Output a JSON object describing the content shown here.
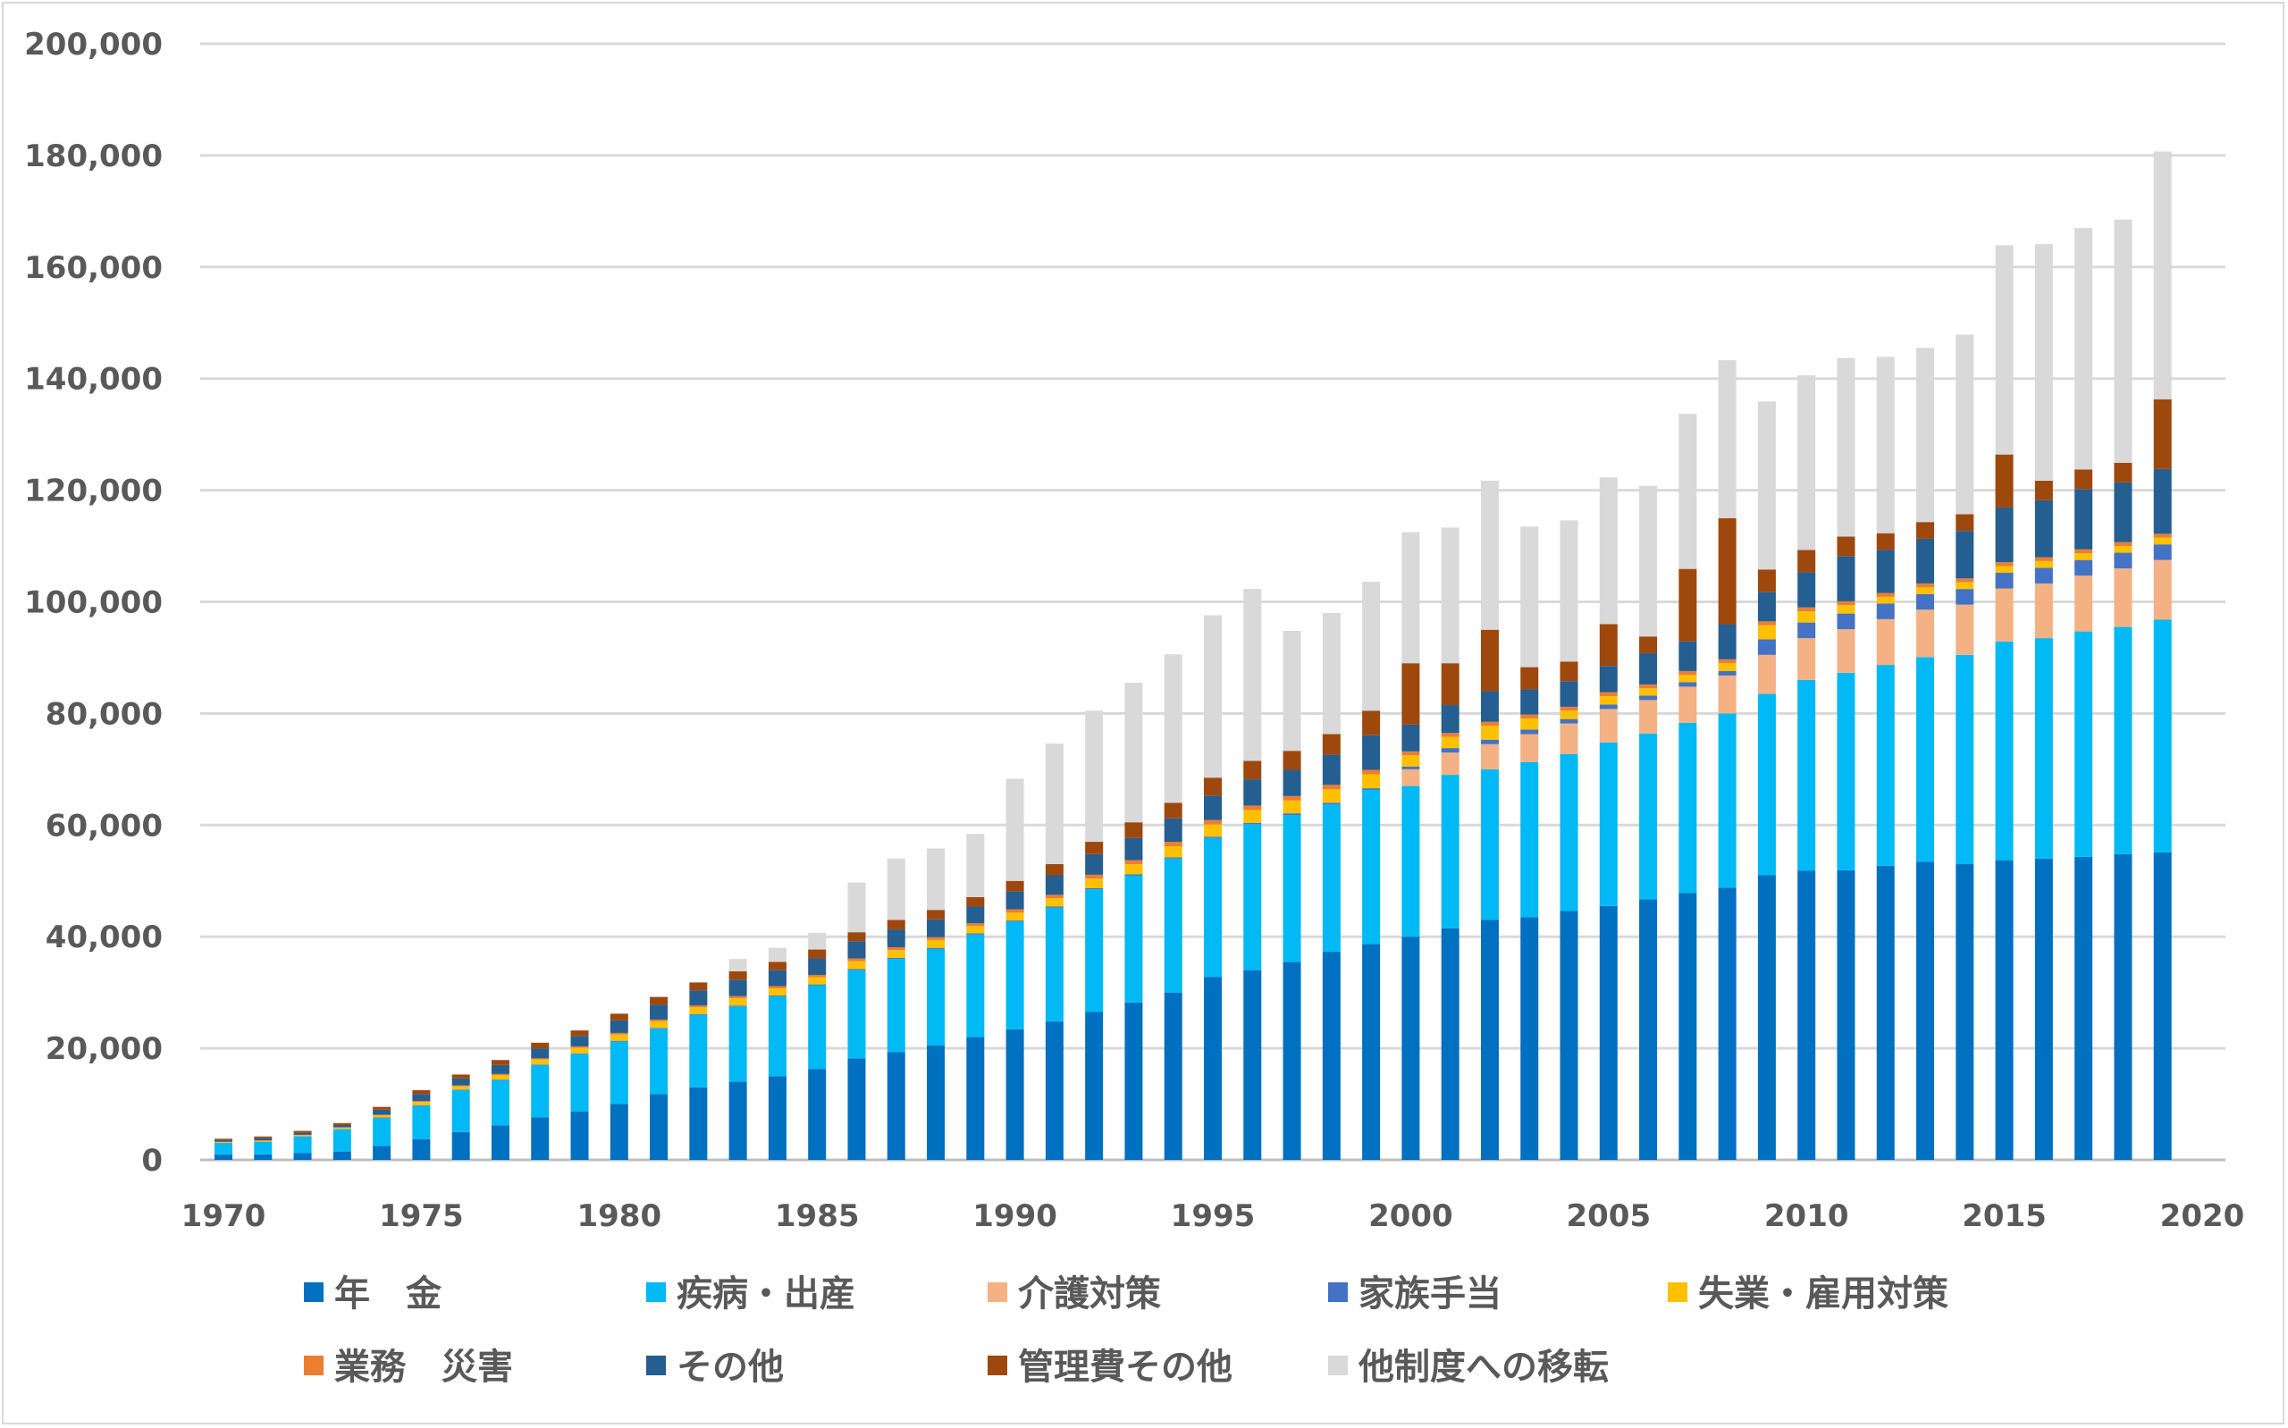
{
  "chart_data": {
    "type": "bar",
    "stacked": true,
    "title": "",
    "xlabel": "",
    "ylabel": "",
    "ylim": [
      0,
      200000
    ],
    "yticks": [
      "0",
      "20,000",
      "40,000",
      "60,000",
      "80,000",
      "100,000",
      "120,000",
      "140,000",
      "160,000",
      "180,000",
      "200,000"
    ],
    "xlim": [
      1970,
      2020
    ],
    "xticks": [
      "1970",
      "1975",
      "1980",
      "1985",
      "1990",
      "1995",
      "2000",
      "2005",
      "2010",
      "2015",
      "2020"
    ],
    "grid": true,
    "legend_position": "bottom",
    "x": [
      1970,
      1971,
      1972,
      1973,
      1974,
      1975,
      1976,
      1977,
      1978,
      1979,
      1980,
      1981,
      1982,
      1983,
      1984,
      1985,
      1986,
      1987,
      1988,
      1989,
      1990,
      1991,
      1992,
      1993,
      1994,
      1995,
      1996,
      1997,
      1998,
      1999,
      2000,
      2001,
      2002,
      2003,
      2004,
      2005,
      2006,
      2007,
      2008,
      2009,
      2010,
      2011,
      2012,
      2013,
      2014,
      2015,
      2016,
      2017,
      2018,
      2019
    ],
    "series": [
      {
        "name": "年　金",
        "color": "#0070C0",
        "values": [
          1000,
          1000,
          1200,
          1500,
          2500,
          3700,
          5000,
          6200,
          7600,
          8700,
          10000,
          11800,
          13000,
          14000,
          15000,
          16300,
          18200,
          19300,
          20500,
          22000,
          23400,
          24800,
          26500,
          28200,
          30000,
          32800,
          34000,
          35500,
          37300,
          38700,
          40000,
          41500,
          43000,
          43500,
          44600,
          45500,
          46700,
          47800,
          48800,
          51000,
          51800,
          51900,
          52700,
          53400,
          53000,
          53700,
          54000,
          54300,
          54800,
          55100
        ]
      },
      {
        "name": "疾病・出産",
        "color": "#00B9F5",
        "values": [
          2000,
          2200,
          3000,
          4000,
          5000,
          6000,
          7500,
          8100,
          9400,
          10300,
          11200,
          11700,
          13000,
          13500,
          14300,
          15000,
          15800,
          16700,
          17300,
          18400,
          19300,
          20400,
          22000,
          22800,
          24000,
          24900,
          26200,
          26300,
          26400,
          27600,
          27000,
          27500,
          27000,
          27800,
          28100,
          29300,
          29700,
          30500,
          31200,
          32500,
          34200,
          35400,
          36000,
          36700,
          37500,
          39200,
          39500,
          40400,
          40700,
          41700
        ]
      },
      {
        "name": "介護対策",
        "color": "#F4B183",
        "values": [
          0,
          0,
          0,
          0,
          0,
          0,
          0,
          0,
          0,
          0,
          0,
          0,
          0,
          0,
          0,
          0,
          0,
          0,
          0,
          0,
          0,
          0,
          0,
          0,
          0,
          0,
          0,
          0,
          0,
          0,
          3000,
          4000,
          4500,
          5000,
          5500,
          6000,
          6000,
          6500,
          6800,
          7000,
          7500,
          7800,
          8200,
          8500,
          9000,
          9500,
          9800,
          10000,
          10500,
          10700
        ]
      },
      {
        "name": "家族手当",
        "color": "#4472C4",
        "values": [
          50,
          50,
          50,
          50,
          100,
          100,
          100,
          100,
          100,
          100,
          150,
          150,
          150,
          150,
          150,
          150,
          200,
          200,
          200,
          200,
          200,
          200,
          200,
          200,
          200,
          200,
          200,
          300,
          300,
          300,
          500,
          800,
          800,
          800,
          800,
          800,
          800,
          800,
          800,
          2800,
          2800,
          2800,
          2800,
          2800,
          2800,
          2800,
          2800,
          2800,
          2800,
          2800
        ]
      },
      {
        "name": "失業・雇用対策",
        "color": "#FFC000",
        "values": [
          150,
          200,
          200,
          250,
          400,
          600,
          600,
          800,
          900,
          1000,
          1100,
          1200,
          1200,
          1300,
          1300,
          1300,
          1400,
          1400,
          1400,
          1300,
          1400,
          1500,
          1700,
          1800,
          2000,
          2200,
          2300,
          2300,
          2400,
          2500,
          2000,
          2000,
          2500,
          2000,
          1500,
          1500,
          1300,
          1300,
          1400,
          2500,
          2000,
          1500,
          1200,
          1200,
          1200,
          1200,
          1200,
          1200,
          1200,
          1200
        ]
      },
      {
        "name": "業務　災害",
        "color": "#ED7D31",
        "values": [
          50,
          50,
          50,
          50,
          100,
          150,
          150,
          200,
          200,
          250,
          300,
          300,
          350,
          400,
          400,
          400,
          500,
          500,
          500,
          500,
          600,
          600,
          700,
          700,
          800,
          800,
          800,
          800,
          800,
          800,
          700,
          700,
          700,
          700,
          700,
          700,
          700,
          700,
          700,
          700,
          700,
          700,
          700,
          700,
          700,
          700,
          700,
          700,
          700,
          700
        ]
      },
      {
        "name": "その他",
        "color": "#255E91",
        "values": [
          300,
          400,
          400,
          400,
          900,
          1250,
          1250,
          1600,
          1800,
          1850,
          2250,
          2650,
          2700,
          2950,
          2850,
          2950,
          3100,
          3200,
          3200,
          3000,
          3200,
          3500,
          3700,
          4000,
          4200,
          4400,
          4700,
          4700,
          5400,
          6200,
          4800,
          5000,
          5500,
          4500,
          4600,
          4700,
          5600,
          5300,
          6300,
          5300,
          6300,
          8100,
          7700,
          8000,
          8500,
          9800,
          10200,
          10800,
          10700,
          11600
        ]
      },
      {
        "name": "管理費その他",
        "color": "#9E480E",
        "values": [
          250,
          300,
          300,
          350,
          500,
          700,
          700,
          900,
          1000,
          1000,
          1200,
          1400,
          1400,
          1500,
          1500,
          1600,
          1600,
          1700,
          1700,
          1700,
          1900,
          2000,
          2200,
          2800,
          2800,
          3200,
          3300,
          3400,
          3700,
          4400,
          11000,
          7500,
          11000,
          4000,
          3500,
          7500,
          3000,
          13000,
          19000,
          4000,
          4000,
          3500,
          3000,
          3000,
          3000,
          9500,
          3500,
          3500,
          3500,
          12500
        ]
      },
      {
        "name": "他制度への移転",
        "color": "#D9D9D9",
        "values": [
          0,
          0,
          0,
          0,
          0,
          0,
          0,
          0,
          0,
          0,
          0,
          0,
          0,
          2200,
          2500,
          3000,
          8900,
          11000,
          11000,
          11300,
          18300,
          21600,
          23500,
          25000,
          26600,
          29100,
          30800,
          21500,
          21700,
          23100,
          23500,
          24300,
          26700,
          25200,
          25300,
          26300,
          27000,
          27800,
          28300,
          30100,
          31300,
          32000,
          31600,
          31200,
          32200,
          37500,
          42400,
          43300,
          43600,
          44400
        ]
      }
    ]
  }
}
